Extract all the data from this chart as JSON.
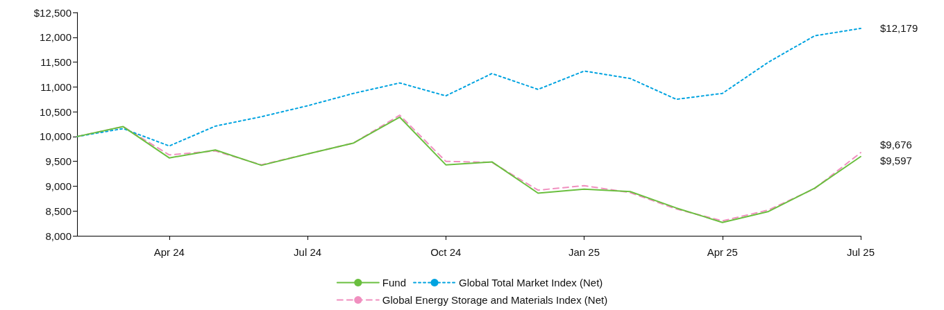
{
  "chart_data": {
    "type": "line",
    "categories": [
      null,
      null,
      "Apr 24",
      null,
      null,
      "Jul 24",
      null,
      null,
      "Oct 24",
      null,
      null,
      "Jan 25",
      null,
      null,
      "Apr 25",
      null,
      null,
      "Jul 25"
    ],
    "series": [
      {
        "name": "Fund",
        "color": "#6abf3f",
        "line_style": "solid",
        "values": [
          10000,
          10200,
          9570,
          9730,
          9420,
          9650,
          9870,
          10390,
          9430,
          9490,
          8860,
          8940,
          8890,
          8560,
          8270,
          8490,
          8960,
          9597
        ],
        "value_labels": [
          null,
          null,
          null,
          null,
          null,
          null,
          null,
          null,
          null,
          null,
          null,
          null,
          null,
          null,
          null,
          null,
          null,
          "$9,597"
        ]
      },
      {
        "name": "Global Total Market Index (Net)",
        "color": "#00a3e0",
        "line_style": "dotted",
        "values": [
          10000,
          10160,
          9810,
          10210,
          10400,
          10620,
          10870,
          11080,
          10820,
          11270,
          10950,
          11320,
          11170,
          10750,
          10870,
          11500,
          12030,
          12179
        ],
        "value_labels": [
          null,
          null,
          null,
          null,
          null,
          null,
          null,
          null,
          null,
          null,
          null,
          null,
          null,
          null,
          null,
          null,
          null,
          "$12,179"
        ]
      },
      {
        "name": "Global Energy Storage and Materials Index (Net)",
        "color": "#f08fbf",
        "line_style": "dashed",
        "values": [
          10000,
          10200,
          9630,
          9710,
          9430,
          9650,
          9870,
          10430,
          9500,
          9480,
          8920,
          9010,
          8870,
          8540,
          8300,
          8520,
          8950,
          9676
        ],
        "value_labels": [
          null,
          null,
          null,
          null,
          null,
          null,
          null,
          null,
          null,
          null,
          null,
          null,
          null,
          null,
          null,
          null,
          null,
          "$9,676"
        ]
      }
    ],
    "ylim": [
      8000,
      12500
    ],
    "yticks": [
      {
        "value": 8000,
        "label": "8,000"
      },
      {
        "value": 8500,
        "label": "8,500"
      },
      {
        "value": 9000,
        "label": "9,000"
      },
      {
        "value": 9500,
        "label": "9,500"
      },
      {
        "value": 10000,
        "label": "10,000"
      },
      {
        "value": 10500,
        "label": "10,500"
      },
      {
        "value": 11000,
        "label": "11,000"
      },
      {
        "value": 11500,
        "label": "11,500"
      },
      {
        "value": 12000,
        "label": "12,000"
      },
      {
        "value": 12500,
        "label": "$12,500"
      }
    ],
    "grid": false,
    "legend": "bottom",
    "marker": "none"
  }
}
